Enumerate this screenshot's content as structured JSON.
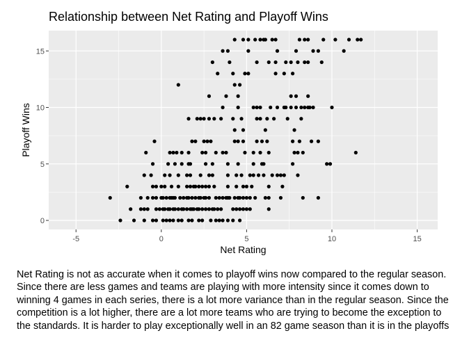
{
  "chart_data": {
    "type": "scatter",
    "title": "Relationship between Net Rating and Playoff Wins",
    "xlabel": "Net Rating",
    "ylabel": "Playoff Wins",
    "xlim": [
      -6.6,
      16.2
    ],
    "ylim": [
      -0.8,
      16.8
    ],
    "xticks": [
      -5,
      0,
      5,
      10,
      15
    ],
    "yticks": [
      0,
      5,
      10,
      15
    ],
    "xtick_labels": [
      "-5",
      "0",
      "5",
      "10",
      "15"
    ],
    "ytick_labels": [
      "0",
      "5",
      "10",
      "15"
    ],
    "grid": true,
    "background": "#ebebeb",
    "grid_color": "#ffffff",
    "point_color": "#000000",
    "points": [
      [
        4.3,
        16
      ],
      [
        4.8,
        16
      ],
      [
        5.1,
        16
      ],
      [
        5.5,
        16
      ],
      [
        5.8,
        16
      ],
      [
        6.0,
        16
      ],
      [
        6.1,
        16
      ],
      [
        6.5,
        16
      ],
      [
        6.7,
        16
      ],
      [
        8.1,
        16
      ],
      [
        8.4,
        16
      ],
      [
        8.6,
        16
      ],
      [
        9.5,
        16
      ],
      [
        10.2,
        16
      ],
      [
        11.0,
        16
      ],
      [
        11.5,
        16
      ],
      [
        11.7,
        16
      ],
      [
        3.6,
        15
      ],
      [
        3.9,
        15
      ],
      [
        5.1,
        15
      ],
      [
        6.8,
        15
      ],
      [
        7.9,
        15
      ],
      [
        8.9,
        15
      ],
      [
        9.2,
        15
      ],
      [
        10.7,
        15
      ],
      [
        3.0,
        14
      ],
      [
        4.0,
        14
      ],
      [
        5.6,
        14
      ],
      [
        6.3,
        14
      ],
      [
        6.7,
        14
      ],
      [
        7.3,
        14
      ],
      [
        7.6,
        14
      ],
      [
        8.0,
        14
      ],
      [
        8.4,
        14
      ],
      [
        8.6,
        14
      ],
      [
        9.4,
        14
      ],
      [
        3.3,
        13
      ],
      [
        4.2,
        13
      ],
      [
        4.9,
        13
      ],
      [
        5.1,
        13
      ],
      [
        6.7,
        13
      ],
      [
        7.2,
        13
      ],
      [
        7.7,
        13
      ],
      [
        1.0,
        12
      ],
      [
        4.3,
        12
      ],
      [
        4.6,
        12
      ],
      [
        2.8,
        11
      ],
      [
        3.8,
        11
      ],
      [
        4.5,
        11
      ],
      [
        7.6,
        11
      ],
      [
        7.9,
        11
      ],
      [
        8.6,
        11
      ],
      [
        3.6,
        10
      ],
      [
        4.5,
        10
      ],
      [
        5.4,
        10
      ],
      [
        5.6,
        10
      ],
      [
        5.8,
        10
      ],
      [
        6.4,
        10
      ],
      [
        6.8,
        10
      ],
      [
        7.2,
        10
      ],
      [
        7.3,
        10
      ],
      [
        7.6,
        10
      ],
      [
        7.9,
        10
      ],
      [
        8.2,
        10
      ],
      [
        8.4,
        10
      ],
      [
        8.6,
        10
      ],
      [
        8.7,
        10
      ],
      [
        8.9,
        10
      ],
      [
        10.0,
        10
      ],
      [
        1.6,
        9
      ],
      [
        2.1,
        9
      ],
      [
        2.3,
        9
      ],
      [
        2.5,
        9
      ],
      [
        2.8,
        9
      ],
      [
        3.1,
        9
      ],
      [
        3.5,
        9
      ],
      [
        4.2,
        9
      ],
      [
        4.7,
        9
      ],
      [
        5.6,
        9
      ],
      [
        5.8,
        9
      ],
      [
        6.2,
        9
      ],
      [
        6.6,
        9
      ],
      [
        7.4,
        9
      ],
      [
        8.2,
        9
      ],
      [
        4.3,
        8
      ],
      [
        4.8,
        8
      ],
      [
        6.1,
        8
      ],
      [
        7.8,
        8
      ],
      [
        -0.4,
        7
      ],
      [
        1.8,
        7
      ],
      [
        2.0,
        7
      ],
      [
        2.5,
        7
      ],
      [
        2.7,
        7
      ],
      [
        2.9,
        7
      ],
      [
        4.3,
        7
      ],
      [
        4.5,
        7
      ],
      [
        4.8,
        7
      ],
      [
        5.6,
        7
      ],
      [
        5.9,
        7
      ],
      [
        6.2,
        7
      ],
      [
        7.7,
        7
      ],
      [
        8.1,
        7
      ],
      [
        8.8,
        7
      ],
      [
        9.2,
        7
      ],
      [
        -0.9,
        6
      ],
      [
        0.5,
        6
      ],
      [
        0.7,
        6
      ],
      [
        0.9,
        6
      ],
      [
        1.2,
        6
      ],
      [
        1.6,
        6
      ],
      [
        2.4,
        6
      ],
      [
        2.6,
        6
      ],
      [
        3.2,
        6
      ],
      [
        3.6,
        6
      ],
      [
        3.8,
        6
      ],
      [
        4.9,
        6
      ],
      [
        5.4,
        6
      ],
      [
        5.8,
        6
      ],
      [
        6.3,
        6
      ],
      [
        7.8,
        6
      ],
      [
        8.0,
        6
      ],
      [
        8.3,
        6
      ],
      [
        11.4,
        6
      ],
      [
        -0.5,
        5
      ],
      [
        0.4,
        5
      ],
      [
        0.8,
        5
      ],
      [
        1.2,
        5
      ],
      [
        1.6,
        5
      ],
      [
        1.7,
        5
      ],
      [
        2.6,
        5
      ],
      [
        3.0,
        5
      ],
      [
        3.9,
        5
      ],
      [
        4.5,
        5
      ],
      [
        5.4,
        5
      ],
      [
        5.9,
        5
      ],
      [
        6.0,
        5
      ],
      [
        7.7,
        5
      ],
      [
        9.7,
        5
      ],
      [
        9.9,
        5
      ],
      [
        -1.0,
        4
      ],
      [
        -0.6,
        4
      ],
      [
        0.2,
        4
      ],
      [
        0.5,
        4
      ],
      [
        1.0,
        4
      ],
      [
        1.5,
        4
      ],
      [
        1.7,
        4
      ],
      [
        2.3,
        4
      ],
      [
        2.8,
        4
      ],
      [
        3.0,
        4
      ],
      [
        3.9,
        4
      ],
      [
        4.4,
        4
      ],
      [
        4.7,
        4
      ],
      [
        5.2,
        4
      ],
      [
        5.4,
        4
      ],
      [
        5.7,
        4
      ],
      [
        6.0,
        4
      ],
      [
        6.5,
        4
      ],
      [
        6.8,
        4
      ],
      [
        7.0,
        4
      ],
      [
        7.2,
        4
      ],
      [
        8.0,
        4
      ],
      [
        -2.0,
        3
      ],
      [
        -0.5,
        3
      ],
      [
        -0.3,
        3
      ],
      [
        0.0,
        3
      ],
      [
        0.2,
        3
      ],
      [
        0.6,
        3
      ],
      [
        1.0,
        3
      ],
      [
        1.5,
        3
      ],
      [
        1.7,
        3
      ],
      [
        1.9,
        3
      ],
      [
        2.0,
        3
      ],
      [
        2.2,
        3
      ],
      [
        2.4,
        3
      ],
      [
        2.6,
        3
      ],
      [
        2.8,
        3
      ],
      [
        3.1,
        3
      ],
      [
        3.9,
        3
      ],
      [
        4.4,
        3
      ],
      [
        4.8,
        3
      ],
      [
        5.0,
        3
      ],
      [
        5.3,
        3
      ],
      [
        6.3,
        3
      ],
      [
        7.1,
        3
      ],
      [
        -3.0,
        2
      ],
      [
        -1.2,
        2
      ],
      [
        -0.8,
        2
      ],
      [
        -0.5,
        2
      ],
      [
        -0.3,
        2
      ],
      [
        0.0,
        2
      ],
      [
        0.1,
        2
      ],
      [
        0.3,
        2
      ],
      [
        0.5,
        2
      ],
      [
        0.6,
        2
      ],
      [
        0.7,
        2
      ],
      [
        0.8,
        2
      ],
      [
        1.1,
        2
      ],
      [
        1.3,
        2
      ],
      [
        1.5,
        2
      ],
      [
        1.6,
        2
      ],
      [
        1.8,
        2
      ],
      [
        2.0,
        2
      ],
      [
        2.2,
        2
      ],
      [
        2.3,
        2
      ],
      [
        2.5,
        2
      ],
      [
        2.6,
        2
      ],
      [
        2.8,
        2
      ],
      [
        3.2,
        2
      ],
      [
        3.4,
        2
      ],
      [
        3.6,
        2
      ],
      [
        3.8,
        2
      ],
      [
        3.9,
        2
      ],
      [
        4.0,
        2
      ],
      [
        4.3,
        2
      ],
      [
        4.5,
        2
      ],
      [
        4.6,
        2
      ],
      [
        4.8,
        2
      ],
      [
        5.0,
        2
      ],
      [
        5.2,
        2
      ],
      [
        5.5,
        2
      ],
      [
        6.1,
        2
      ],
      [
        6.3,
        2
      ],
      [
        7.0,
        2
      ],
      [
        8.3,
        2
      ],
      [
        9.2,
        2
      ],
      [
        -1.8,
        1
      ],
      [
        -1.2,
        1
      ],
      [
        -1.0,
        1
      ],
      [
        -0.8,
        1
      ],
      [
        -0.3,
        1
      ],
      [
        -0.1,
        1
      ],
      [
        0.1,
        1
      ],
      [
        0.2,
        1
      ],
      [
        0.4,
        1
      ],
      [
        0.5,
        1
      ],
      [
        0.7,
        1
      ],
      [
        0.8,
        1
      ],
      [
        1.0,
        1
      ],
      [
        1.2,
        1
      ],
      [
        1.3,
        1
      ],
      [
        1.5,
        1
      ],
      [
        1.7,
        1
      ],
      [
        1.8,
        1
      ],
      [
        1.9,
        1
      ],
      [
        2.1,
        1
      ],
      [
        2.2,
        1
      ],
      [
        2.4,
        1
      ],
      [
        2.6,
        1
      ],
      [
        2.8,
        1
      ],
      [
        3.0,
        1
      ],
      [
        3.1,
        1
      ],
      [
        3.3,
        1
      ],
      [
        3.5,
        1
      ],
      [
        4.2,
        1
      ],
      [
        4.4,
        1
      ],
      [
        4.6,
        1
      ],
      [
        4.8,
        1
      ],
      [
        5.0,
        1
      ],
      [
        5.2,
        1
      ],
      [
        6.3,
        1
      ],
      [
        -2.4,
        0
      ],
      [
        -1.6,
        0
      ],
      [
        -1.0,
        0
      ],
      [
        -0.5,
        0
      ],
      [
        -0.3,
        0
      ],
      [
        0.1,
        0
      ],
      [
        0.3,
        0
      ],
      [
        0.5,
        0
      ],
      [
        0.7,
        0
      ],
      [
        1.0,
        0
      ],
      [
        1.2,
        0
      ],
      [
        1.6,
        0
      ],
      [
        1.8,
        0
      ],
      [
        2.2,
        0
      ],
      [
        2.4,
        0
      ],
      [
        2.9,
        0
      ],
      [
        3.2,
        0
      ],
      [
        3.4,
        0
      ],
      [
        3.6,
        0
      ],
      [
        3.9,
        0
      ],
      [
        4.2,
        0
      ],
      [
        4.6,
        0
      ]
    ]
  },
  "caption": {
    "text": "Net Rating is not as accurate when it comes to playoff wins now compared to the regular season. Since there are less games and teams are playing with more intensity since it comes down to winning 4 games in each series, there is a lot more variance than in the regular season. Since the competition is a lot higher, there are a lot more teams who are trying to become the exception to the standards. It is harder to play exceptionally well in an 82 game season than it is in the playoffs"
  }
}
